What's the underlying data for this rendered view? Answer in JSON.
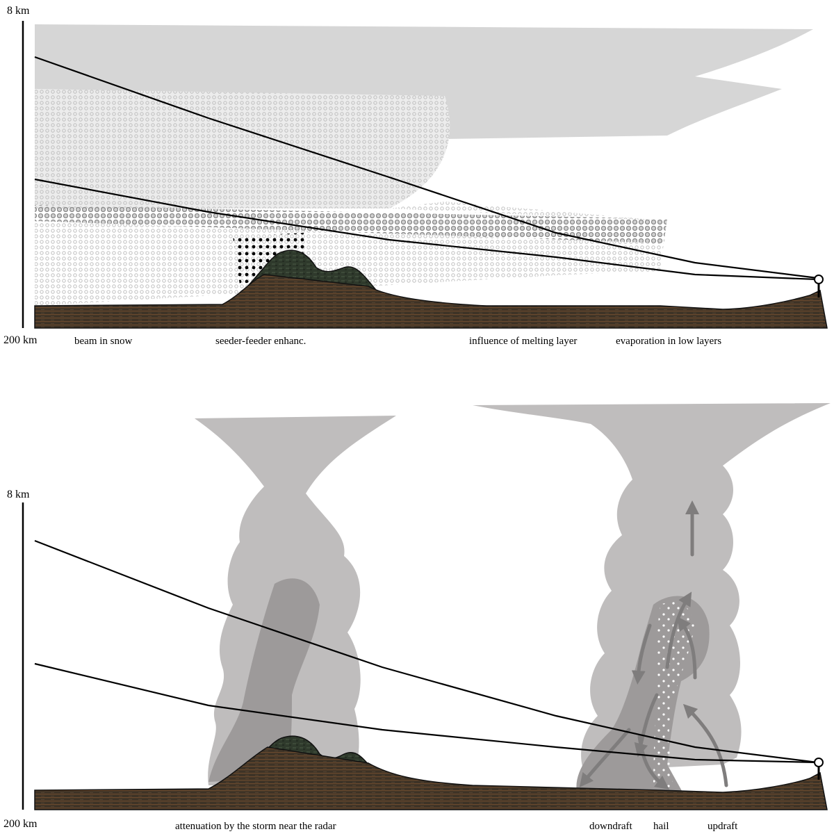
{
  "top_panel": {
    "y_top_label": "8 km",
    "x_left_label": "200 km",
    "annotations": {
      "beam_in_snow": "beam in snow",
      "seeder_feeder": "seeder-feeder enhanc.",
      "melting_layer": "influence of melting layer",
      "evaporation": "evaporation in low layers"
    }
  },
  "bottom_panel": {
    "y_top_label": "8 km",
    "x_left_label": "200 km",
    "annotations": {
      "attenuation": "attenuation by the storm near the radar",
      "downdraft": "downdraft",
      "hail": "hail",
      "updraft": "updraft"
    }
  },
  "colors": {
    "ground": "#3e3326",
    "ground_stripe": "#6b4a2e",
    "mountain": "#2f3a2c",
    "cloud_light": "#d6d6d6",
    "storm_cloud": "#bfbdbd",
    "storm_core": "#9d9a9a",
    "snow_dots": "#c9c9c9",
    "rain_dots": "#000000",
    "beam_line": "#000000"
  }
}
